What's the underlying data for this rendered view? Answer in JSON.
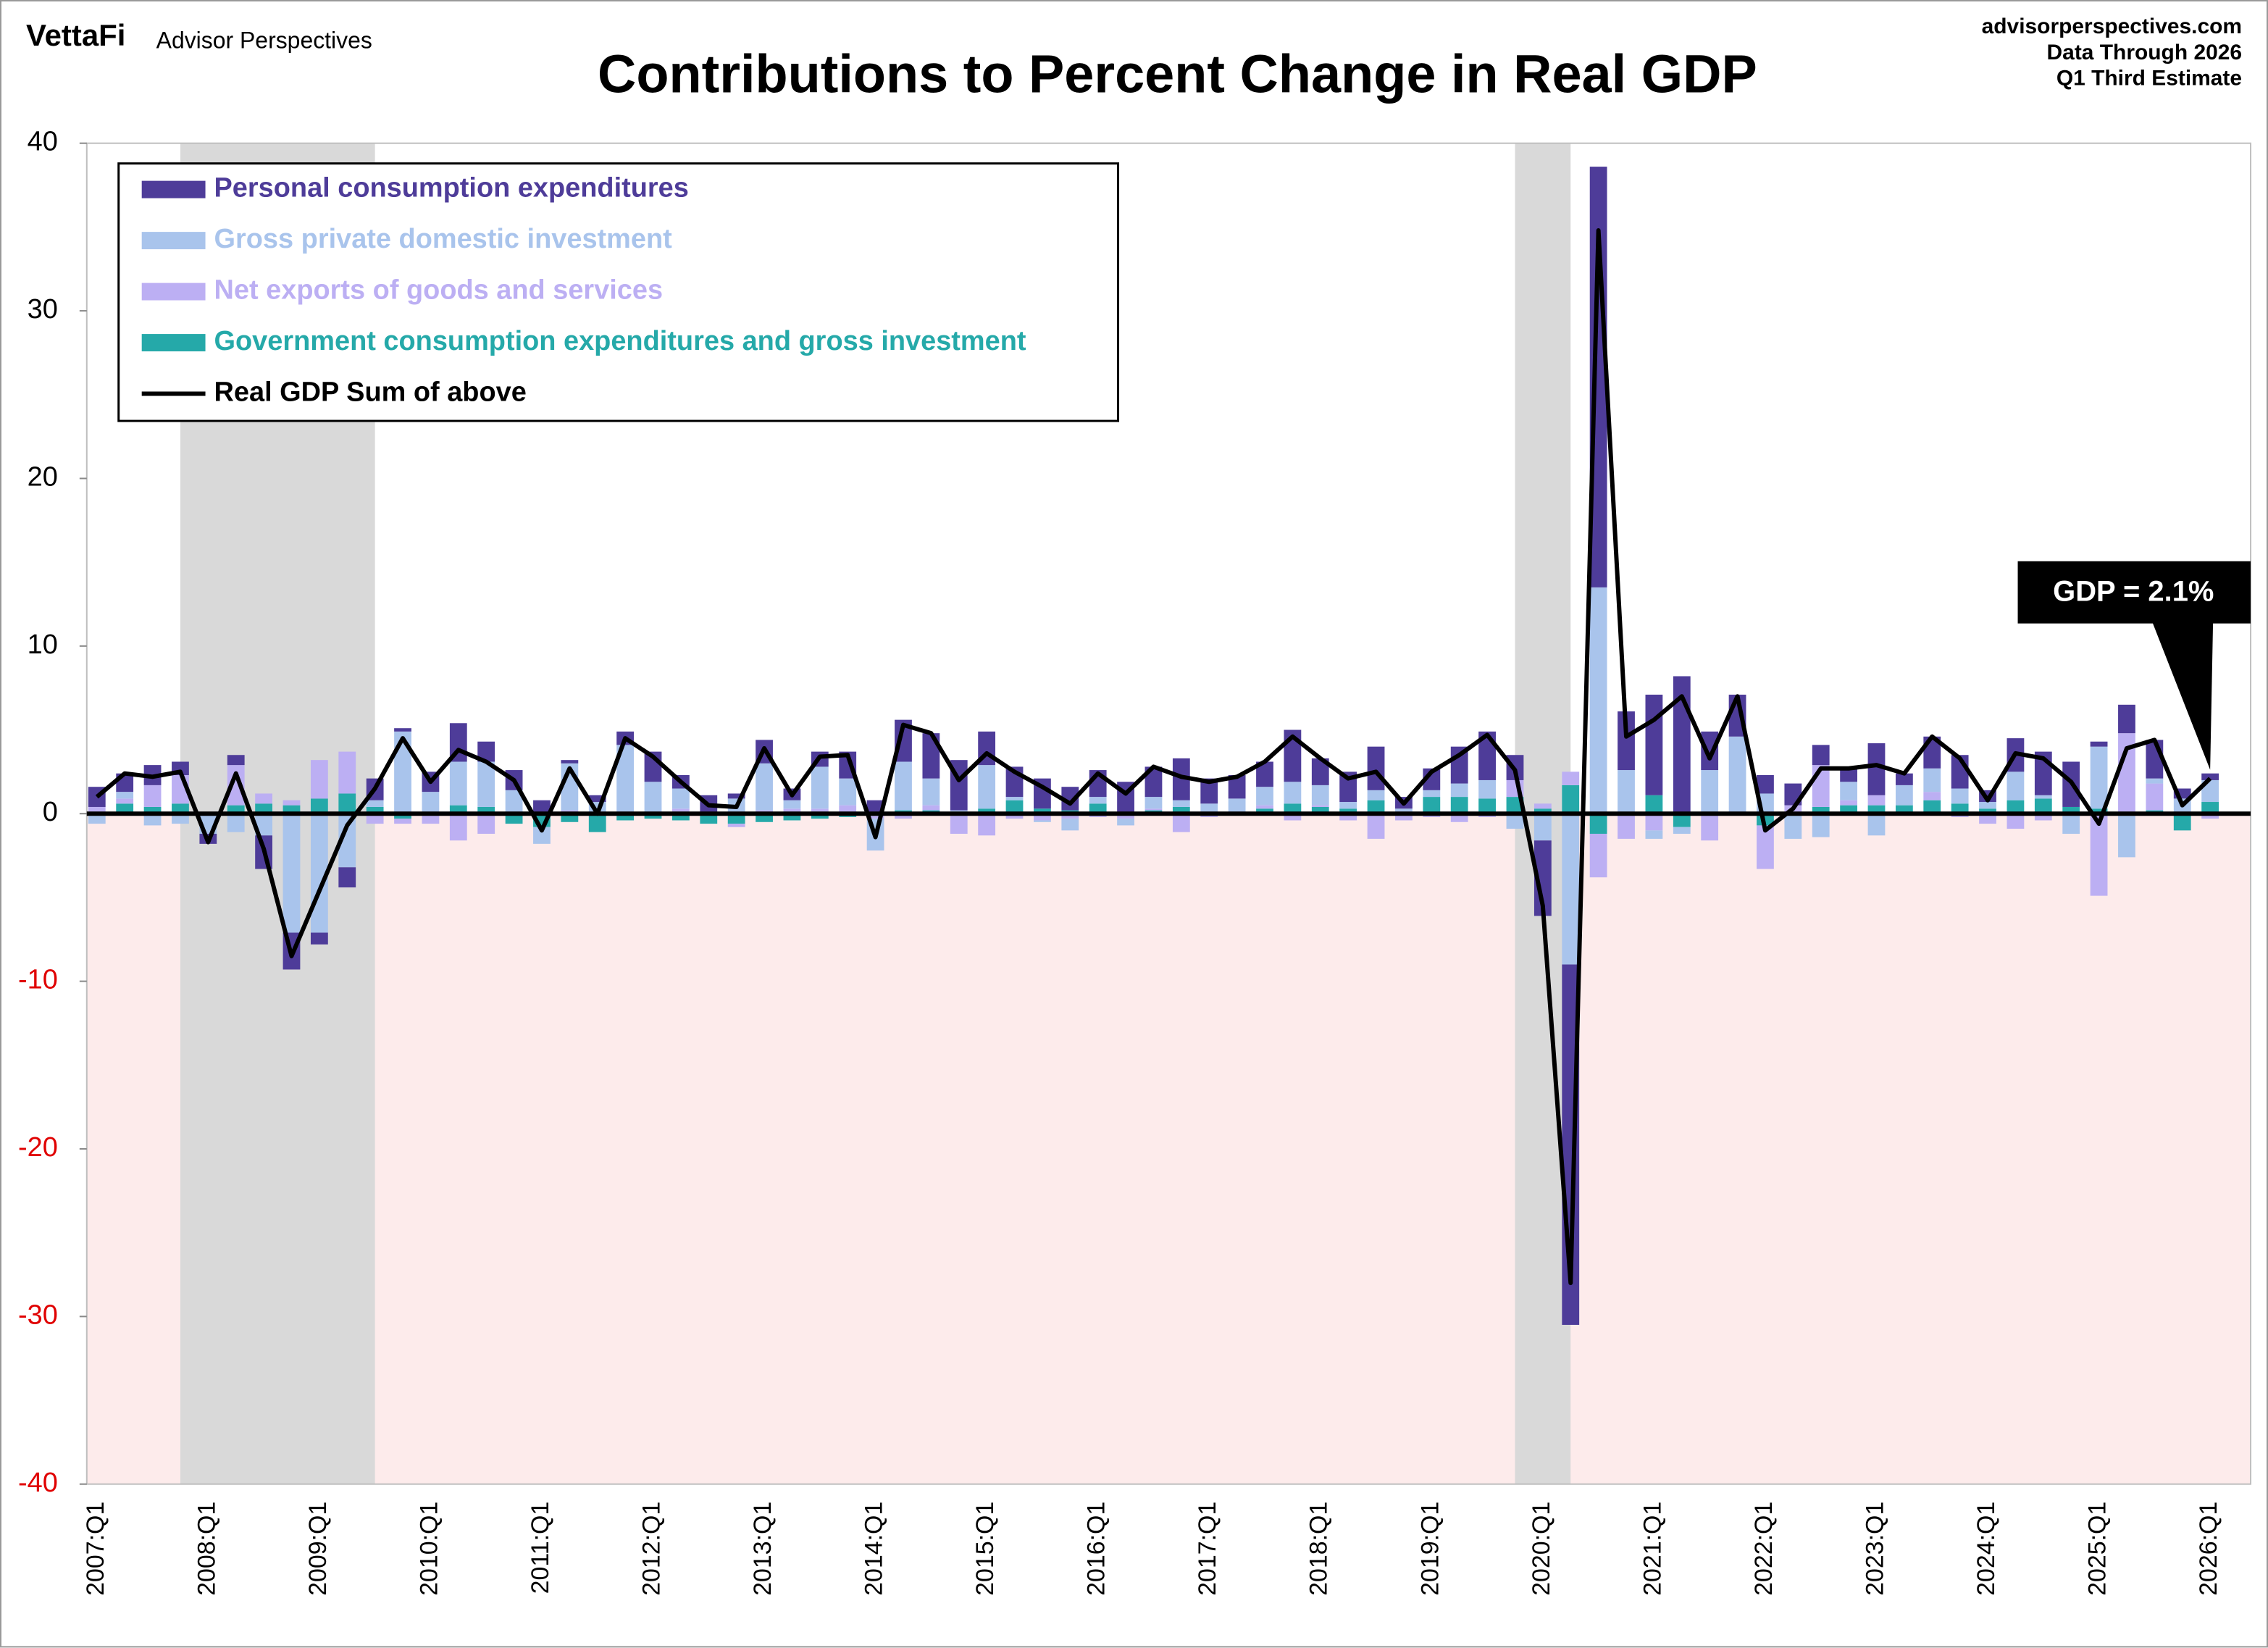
{
  "chart_data": {
    "type": "stacked-bar-line",
    "brand": "VettaFi",
    "publisher": "Advisor Perspectives",
    "title": "Contributions to Percent Change in Real GDP",
    "source_lines": [
      "advisorperspectives.com",
      "Data Through 2026",
      "Q1 Third Estimate"
    ],
    "annotation": "GDP = 2.1%",
    "categories": [
      "2007:Q1",
      null,
      null,
      null,
      "2008:Q1",
      null,
      null,
      null,
      "2009:Q1",
      null,
      null,
      null,
      "2010:Q1",
      null,
      null,
      null,
      "2011:Q1",
      null,
      null,
      null,
      "2012:Q1",
      null,
      null,
      null,
      "2013:Q1",
      null,
      null,
      null,
      "2014:Q1",
      null,
      null,
      null,
      "2015:Q1",
      null,
      null,
      null,
      "2016:Q1",
      null,
      null,
      null,
      "2017:Q1",
      null,
      null,
      null,
      "2018:Q1",
      null,
      null,
      null,
      "2019:Q1",
      null,
      null,
      null,
      "2020:Q1",
      null,
      null,
      null,
      "2021:Q1",
      null,
      null,
      null,
      "2022:Q1",
      null,
      null,
      null,
      "2023:Q1",
      null,
      null,
      null,
      "2024:Q1",
      null,
      null,
      null,
      "2025:Q1",
      null,
      null,
      null,
      "2026:Q1"
    ],
    "series": [
      {
        "name": "Personal consumption expenditures",
        "color": "#4e3c99",
        "values": [
          1.2,
          1.1,
          1.2,
          0.8,
          -0.6,
          0.6,
          -2.0,
          -2.2,
          -0.7,
          -1.2,
          1.3,
          0.2,
          1.2,
          2.3,
          1.2,
          1.2,
          0.8,
          0.2,
          0.4,
          0.8,
          1.8,
          0.8,
          1.0,
          0.3,
          1.4,
          0.7,
          0.9,
          1.6,
          0.8,
          2.5,
          2.7,
          3.0,
          2.0,
          1.8,
          1.8,
          1.4,
          1.6,
          1.9,
          1.8,
          2.5,
          1.5,
          1.4,
          1.5,
          3.1,
          1.6,
          1.8,
          2.6,
          0.7,
          1.3,
          2.2,
          2.9,
          1.5,
          -4.5,
          -21.5,
          25.1,
          3.5,
          6.0,
          8.2,
          2.3,
          2.5,
          1.1,
          1.3,
          1.2,
          0.8,
          3.1,
          0.7,
          1.9,
          2.0,
          0.7,
          2.0,
          2.6,
          2.7,
          0.3,
          1.7,
          2.3,
          0.6,
          0.4
        ]
      },
      {
        "name": "Gross private domestic investment",
        "color": "#a9c4ec",
        "values": [
          -0.6,
          0.4,
          -0.7,
          -0.6,
          -1.2,
          -1.1,
          -1.3,
          -7.1,
          -7.1,
          -3.2,
          0.4,
          4.9,
          1.2,
          2.6,
          2.7,
          1.3,
          -1.0,
          2.8,
          0.7,
          4.1,
          1.8,
          1.2,
          0.0,
          0.9,
          2.8,
          0.5,
          2.5,
          1.6,
          -1.9,
          2.9,
          1.6,
          0.2,
          2.6,
          0.2,
          -0.1,
          -0.7,
          0.4,
          -0.4,
          0.7,
          0.4,
          0.6,
          0.8,
          1.1,
          1.3,
          1.2,
          0.4,
          0.6,
          0.3,
          0.4,
          0.8,
          1.1,
          -0.9,
          -1.6,
          -9.0,
          13.5,
          2.5,
          -0.5,
          -0.4,
          2.6,
          4.5,
          1.2,
          -1.5,
          -1.4,
          1.1,
          -1.3,
          1.2,
          1.4,
          0.9,
          0.4,
          1.7,
          0.2,
          -1.2,
          3.7,
          -2.6,
          0.3,
          0.9,
          1.3
        ]
      },
      {
        "name": "Net exports of goods and services",
        "color": "#bcaff3",
        "values": [
          0.3,
          0.3,
          1.3,
          1.7,
          0.0,
          2.4,
          0.6,
          0.3,
          2.3,
          2.5,
          -0.6,
          -0.3,
          -0.6,
          -1.6,
          -1.2,
          0.1,
          0.0,
          0.2,
          0.0,
          0.0,
          0.1,
          0.3,
          0.1,
          -0.2,
          0.2,
          0.3,
          0.3,
          0.5,
          -0.3,
          -0.3,
          0.3,
          -1.2,
          -1.3,
          -0.3,
          -0.4,
          -0.3,
          -0.2,
          -0.3,
          0.1,
          -1.1,
          -0.2,
          -0.1,
          0.2,
          -0.4,
          0.1,
          -0.4,
          -1.5,
          -0.4,
          -0.2,
          -0.5,
          -0.2,
          1.0,
          0.3,
          0.8,
          -2.6,
          -1.5,
          -1.0,
          0.0,
          -1.5,
          -0.1,
          -2.6,
          0.4,
          2.5,
          0.3,
          0.6,
          0.0,
          0.5,
          -0.2,
          -0.6,
          -0.9,
          -0.4,
          0.0,
          -4.9,
          4.8,
          1.6,
          0.0,
          -0.3
        ]
      },
      {
        "name": "Government consumption expenditures and gross investment",
        "color": "#25a9a9",
        "values": [
          0.1,
          0.6,
          0.4,
          0.6,
          0.1,
          0.5,
          0.6,
          0.5,
          0.9,
          1.2,
          0.4,
          -0.3,
          0.1,
          0.5,
          0.4,
          -0.6,
          -0.8,
          -0.5,
          -1.1,
          -0.4,
          -0.3,
          -0.4,
          -0.6,
          -0.6,
          -0.5,
          -0.4,
          -0.3,
          -0.2,
          0.0,
          0.2,
          0.2,
          0.0,
          0.3,
          0.8,
          0.3,
          0.2,
          0.6,
          0.0,
          0.2,
          0.4,
          0.0,
          0.1,
          0.3,
          0.6,
          0.4,
          0.3,
          0.8,
          0.0,
          1.0,
          1.0,
          0.9,
          1.0,
          0.3,
          1.7,
          -1.2,
          0.1,
          1.1,
          -0.8,
          -0.1,
          0.1,
          -0.7,
          0.1,
          0.4,
          0.5,
          0.5,
          0.5,
          0.8,
          0.6,
          0.3,
          0.8,
          0.9,
          0.4,
          0.3,
          0.0,
          0.2,
          -1.0,
          0.7
        ]
      },
      {
        "name": "Real GDP Sum of above",
        "type": "line",
        "color": "#000000",
        "values": [
          1.0,
          2.4,
          2.2,
          2.5,
          -1.7,
          2.4,
          -2.1,
          -8.5,
          -4.6,
          -0.7,
          1.5,
          4.5,
          1.9,
          3.8,
          3.1,
          2.0,
          -1.0,
          2.7,
          0.0,
          4.5,
          3.4,
          1.9,
          0.5,
          0.4,
          3.9,
          1.1,
          3.4,
          3.5,
          -1.4,
          5.3,
          4.8,
          2.0,
          3.6,
          2.5,
          1.6,
          0.6,
          2.4,
          1.2,
          2.8,
          2.2,
          1.9,
          2.2,
          3.1,
          4.6,
          3.3,
          2.1,
          2.5,
          0.6,
          2.5,
          3.5,
          4.7,
          2.6,
          -5.5,
          -28.0,
          34.8,
          4.6,
          5.6,
          7.0,
          3.3,
          7.0,
          -1.0,
          0.3,
          2.7,
          2.7,
          2.9,
          2.4,
          4.6,
          3.3,
          0.8,
          3.6,
          3.3,
          1.9,
          -0.6,
          3.9,
          4.4,
          0.5,
          2.1
        ]
      }
    ],
    "recessions": [
      [
        3,
        10
      ],
      [
        51,
        53
      ]
    ],
    "recession_color": "#d9d9d9",
    "negative_fill": "#fdebeb",
    "negative_tick_color": "#e00000",
    "ylim": [
      -40,
      40
    ],
    "yticks": [
      -40,
      -30,
      -20,
      -10,
      0,
      10,
      20,
      30,
      40
    ],
    "grid": false,
    "legend": "top-left"
  }
}
